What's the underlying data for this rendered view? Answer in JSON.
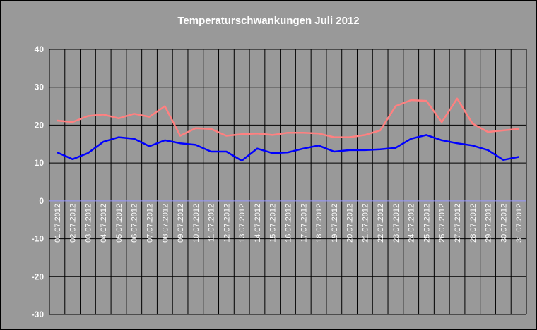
{
  "chart_data": {
    "type": "line",
    "title": "Temperaturschwankungen Juli 2012",
    "xlabel": "",
    "ylabel": "",
    "ylim": [
      -30,
      40
    ],
    "yticks": [
      40,
      30,
      20,
      10,
      0,
      -10,
      -20,
      -30
    ],
    "grid": true,
    "legend": "none",
    "categories": [
      "01.07.2012",
      "02.07.2012",
      "03.07.2012",
      "04.07.2012",
      "05.07.2012",
      "06.07.2012",
      "07.07.2012",
      "08.07.2012",
      "09.07.2012",
      "10.07.2012",
      "11.07.2012",
      "12.07.2012",
      "13.07.2012",
      "14.07.2012",
      "15.07.2012",
      "16.07.2012",
      "17.07.2012",
      "18.07.2012",
      "19.07.2012",
      "20.07.2012",
      "21.07.2012",
      "22.07.2012",
      "23.07.2012",
      "24.07.2012",
      "25.07.2012",
      "26.07.2012",
      "27.07.2012",
      "28.07.2012",
      "29.07.2012",
      "30.07.2012",
      "31.07.2012"
    ],
    "series": [
      {
        "color": "#ff8080",
        "values": [
          21.2,
          20.8,
          22.4,
          22.8,
          21.8,
          23.0,
          22.2,
          25.0,
          17.2,
          19.2,
          19.0,
          17.2,
          17.6,
          17.8,
          17.4,
          18.0,
          18.0,
          17.8,
          16.8,
          16.8,
          17.4,
          18.6,
          25.0,
          26.6,
          26.4,
          20.8,
          27.0,
          20.4,
          18.2,
          18.6,
          19.0
        ]
      },
      {
        "color": "#0000ff",
        "values": [
          12.8,
          11.0,
          12.6,
          15.6,
          16.8,
          16.4,
          14.4,
          16.0,
          15.2,
          14.8,
          13.0,
          13.0,
          10.6,
          13.8,
          12.6,
          12.8,
          13.8,
          14.6,
          13.0,
          13.4,
          13.4,
          13.6,
          14.0,
          16.4,
          17.4,
          16.0,
          15.2,
          14.6,
          13.4,
          10.8,
          11.6
        ]
      }
    ]
  }
}
